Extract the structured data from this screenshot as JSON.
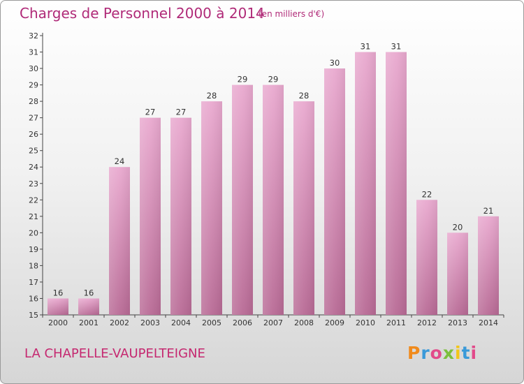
{
  "header": {
    "title": "Charges de Personnel 2000 à 2014",
    "subtitle": "(en milliers d'€)"
  },
  "footer": {
    "commune": "LA CHAPELLE-VAUPELTEIGNE",
    "logo_text": "Proxiti",
    "logo_colors": [
      "#f08a1c",
      "#3a9ad9",
      "#e24a8a",
      "#7cbf3c",
      "#f2c618",
      "#3a9ad9",
      "#e24a8a"
    ]
  },
  "colors": {
    "bar_top": "#e9a9cf",
    "bar_bottom": "#b86a95",
    "title": "#b02a78"
  },
  "chart_data": {
    "type": "bar",
    "title": "Charges de Personnel 2000 à 2014",
    "subtitle": "(en milliers d'€)",
    "xlabel": "",
    "ylabel": "",
    "categories": [
      "2000",
      "2001",
      "2002",
      "2003",
      "2004",
      "2005",
      "2006",
      "2007",
      "2008",
      "2009",
      "2010",
      "2011",
      "2012",
      "2013",
      "2014"
    ],
    "values": [
      16,
      16,
      24,
      27,
      27,
      28,
      29,
      29,
      28,
      30,
      31,
      31,
      22,
      20,
      21
    ],
    "ylim": [
      15,
      32
    ],
    "yticks": [
      15,
      16,
      17,
      18,
      19,
      20,
      21,
      22,
      23,
      24,
      25,
      26,
      27,
      28,
      29,
      30,
      31,
      32
    ],
    "grid": false,
    "legend": "none"
  }
}
